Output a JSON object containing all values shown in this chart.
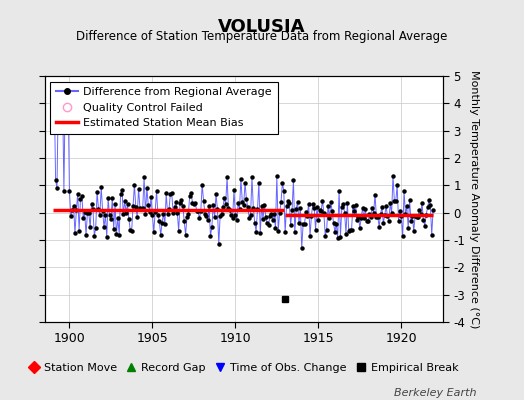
{
  "title": "VOLUSIA",
  "subtitle": "Difference of Station Temperature Data from Regional Average",
  "ylabel": "Monthly Temperature Anomaly Difference (°C)",
  "xlabel_years": [
    1900,
    1905,
    1910,
    1915,
    1920
  ],
  "ylim": [
    -4,
    5
  ],
  "yticks": [
    -4,
    -3,
    -2,
    -1,
    0,
    1,
    2,
    3,
    4,
    5
  ],
  "xlim_start": 1898.5,
  "xlim_end": 1922.5,
  "background_color": "#e8e8e8",
  "plot_bg_color": "#ffffff",
  "grid_color": "#c8c8c8",
  "line_color": "#6666ff",
  "bias_color": "#ff0000",
  "marker_color": "#000000",
  "watermark": "Berkeley Earth",
  "legend1_labels": [
    "Difference from Regional Average",
    "Quality Control Failed",
    "Estimated Station Mean Bias"
  ],
  "legend2_labels": [
    "Station Move",
    "Record Gap",
    "Time of Obs. Change",
    "Empirical Break"
  ],
  "tall_line_x": 1899.5,
  "empirical_break_x": 1913.0,
  "empirical_break_y": -3.15,
  "segment1_bias": 0.08,
  "segment2_bias": -0.07,
  "segment_break": 1913.0
}
